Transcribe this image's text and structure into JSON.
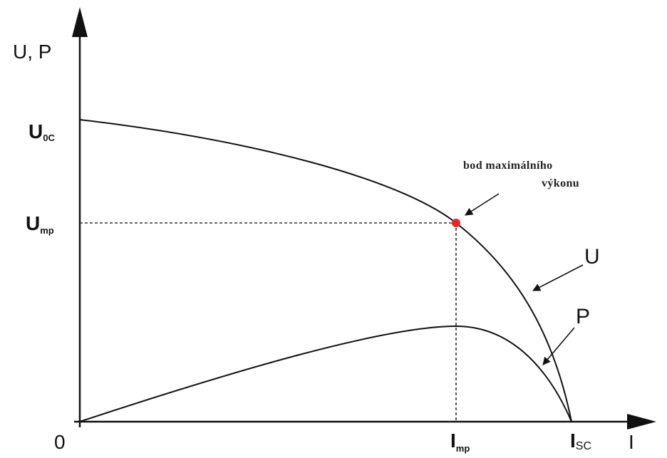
{
  "y_axis_label": "U, P",
  "x_axis_label": "I",
  "origin_label": "0",
  "y_ticks": [
    {
      "symbol": "U",
      "sub": "0C"
    },
    {
      "symbol": "U",
      "sub": "mp"
    }
  ],
  "x_ticks": [
    {
      "symbol": "I",
      "sub": "mp"
    },
    {
      "symbol": "I",
      "sub": "SC"
    }
  ],
  "annotation": {
    "line1": "bod maximálního",
    "line2": "výkonu"
  },
  "curve_labels": {
    "u": "U",
    "p": "P"
  },
  "colors": {
    "curve": "#111111",
    "marker": "#e8262b"
  }
}
